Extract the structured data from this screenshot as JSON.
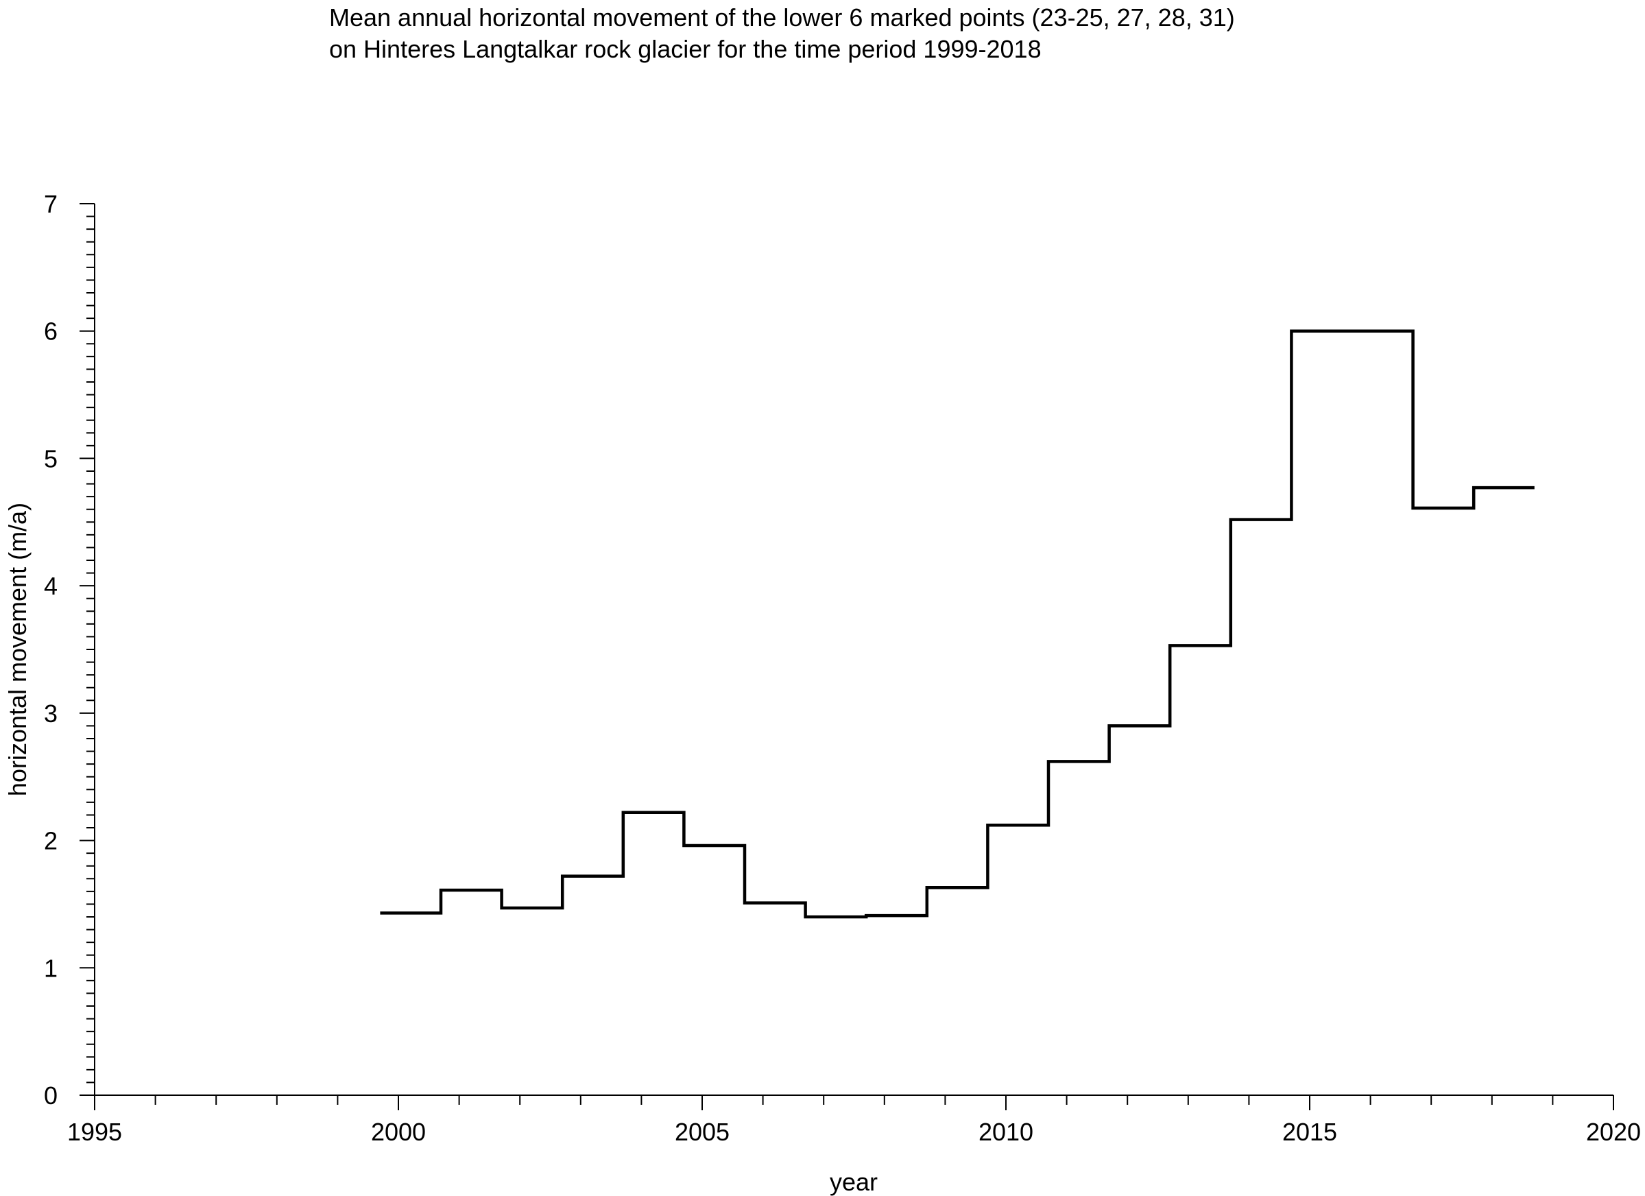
{
  "chart_data": {
    "type": "line",
    "step": true,
    "title": [
      "Mean annual horizontal movement of the lower 6 marked points (23-25, 27, 28, 31)",
      "on Hinteres Langtalkar rock glacier for the time period 1999-2018"
    ],
    "xlabel": "year",
    "ylabel": "horizontal movement (m/a)",
    "xlim": [
      1995,
      2020
    ],
    "ylim": [
      0,
      7
    ],
    "x_major_ticks": [
      1995,
      2000,
      2005,
      2010,
      2015,
      2020
    ],
    "x_minor_step": 1,
    "y_major_ticks": [
      0,
      1,
      2,
      3,
      4,
      5,
      6,
      7
    ],
    "y_minor_step": 0.1,
    "grid": false,
    "series": [
      {
        "color": "#000000",
        "segments": [
          {
            "x0": 1999.7,
            "x1": 2000.7,
            "y": 1.43
          },
          {
            "x0": 2000.7,
            "x1": 2001.7,
            "y": 1.61
          },
          {
            "x0": 2001.7,
            "x1": 2002.7,
            "y": 1.47
          },
          {
            "x0": 2002.7,
            "x1": 2003.7,
            "y": 1.72
          },
          {
            "x0": 2003.7,
            "x1": 2004.7,
            "y": 2.22
          },
          {
            "x0": 2004.7,
            "x1": 2005.7,
            "y": 1.96
          },
          {
            "x0": 2005.7,
            "x1": 2006.7,
            "y": 1.51
          },
          {
            "x0": 2006.7,
            "x1": 2007.7,
            "y": 1.4
          },
          {
            "x0": 2007.7,
            "x1": 2008.7,
            "y": 1.41
          },
          {
            "x0": 2008.7,
            "x1": 2009.7,
            "y": 1.63
          },
          {
            "x0": 2009.7,
            "x1": 2010.7,
            "y": 2.12
          },
          {
            "x0": 2010.7,
            "x1": 2011.7,
            "y": 2.62
          },
          {
            "x0": 2011.7,
            "x1": 2012.7,
            "y": 2.9
          },
          {
            "x0": 2012.7,
            "x1": 2013.7,
            "y": 3.53
          },
          {
            "x0": 2013.7,
            "x1": 2014.7,
            "y": 4.52
          },
          {
            "x0": 2014.7,
            "x1": 2016.7,
            "y": 6.0
          },
          {
            "x0": 2016.7,
            "x1": 2017.7,
            "y": 4.61
          },
          {
            "x0": 2017.7,
            "x1": 2018.7,
            "y": 4.77
          }
        ]
      }
    ]
  }
}
